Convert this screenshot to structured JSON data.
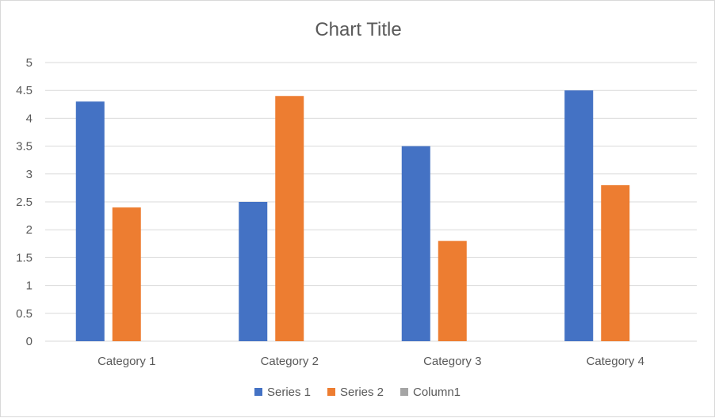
{
  "chart_data": {
    "type": "bar",
    "title": "Chart Title",
    "xlabel": "",
    "ylabel": "",
    "categories": [
      "Category 1",
      "Category 2",
      "Category 3",
      "Category 4"
    ],
    "series": [
      {
        "name": "Series 1",
        "values": [
          4.3,
          2.5,
          3.5,
          4.5
        ],
        "color": "#4472c4"
      },
      {
        "name": "Series 2",
        "values": [
          2.4,
          4.4,
          1.8,
          2.8
        ],
        "color": "#ed7d31"
      },
      {
        "name": "Column1",
        "values": [
          null,
          null,
          null,
          null
        ],
        "color": "#a5a5a5"
      }
    ],
    "ylim": [
      0,
      5
    ],
    "yticks": [
      "0",
      "0.5",
      "1",
      "1.5",
      "2",
      "2.5",
      "3",
      "3.5",
      "4",
      "4.5",
      "5"
    ],
    "grid": true,
    "legend_position": "bottom",
    "gridline_color": "#d9d9d9"
  }
}
